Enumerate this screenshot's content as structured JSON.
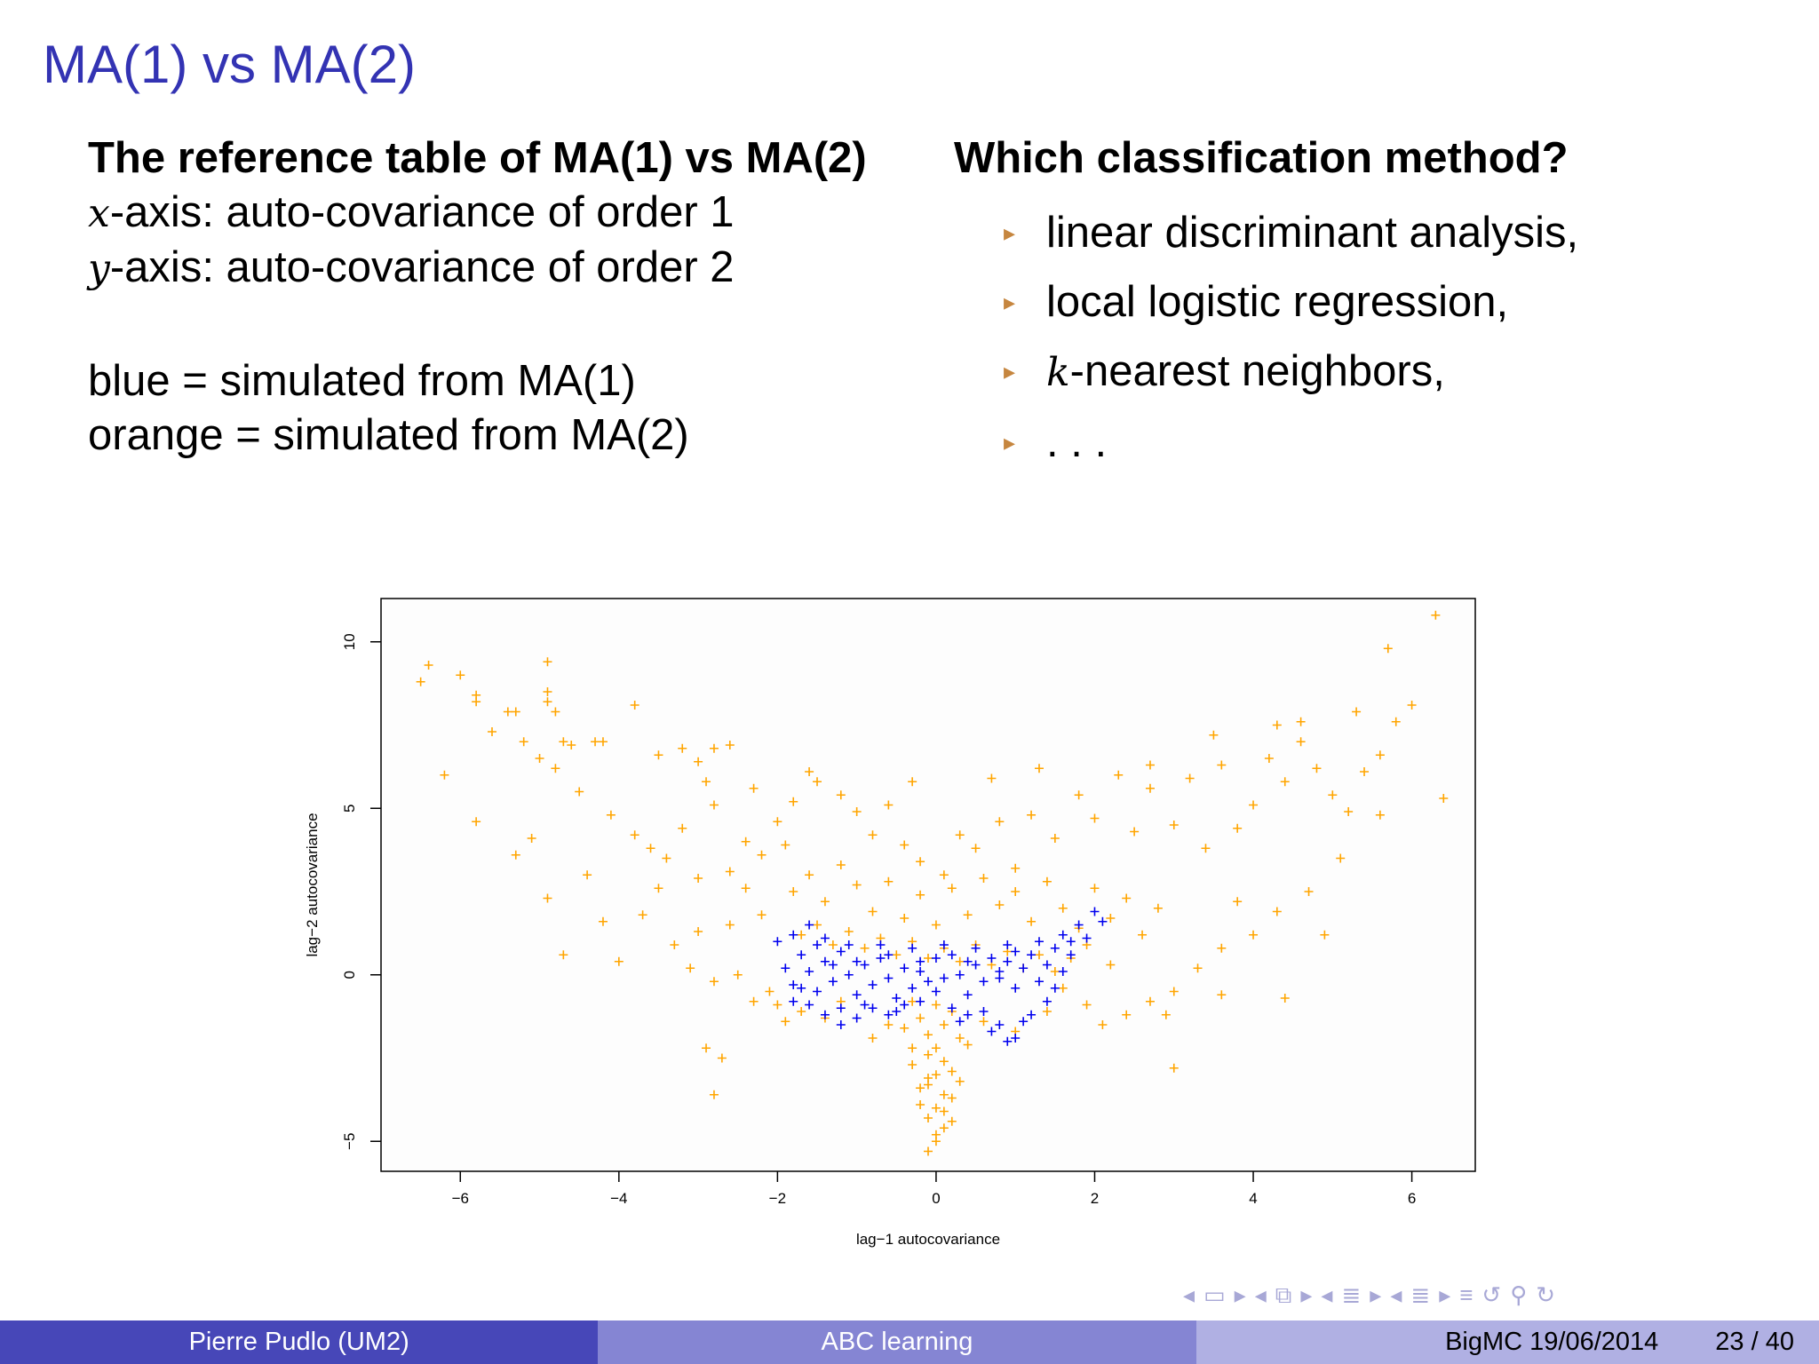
{
  "slide": {
    "title": "MA(1) vs MA(2)",
    "left": {
      "heading": "The reference table of MA(1) vs MA(2)",
      "x_var": "x",
      "x_desc": "-axis: auto-covariance of order 1",
      "y_var": "y",
      "y_desc": "-axis: auto-covariance of order 2",
      "blue_line": "blue = simulated from MA(1)",
      "orange_line": "orange = simulated from MA(2)"
    },
    "right": {
      "heading": "Which classification method?",
      "bullets": [
        "linear discriminant analysis,",
        "local logistic regression,",
        "-nearest neighbors,",
        ". . ."
      ],
      "k_var": "k",
      "bullet_glyph": "▸"
    }
  },
  "chart_data": {
    "type": "scatter",
    "xlabel": "lag−1 autocovariance",
    "ylabel": "lag−2 autocovariance",
    "xlim": [
      -7.0,
      6.8
    ],
    "ylim": [
      -5.9,
      11.3
    ],
    "xticks": [
      -6,
      -4,
      -2,
      0,
      2,
      4,
      6
    ],
    "xtick_labels": [
      "−6",
      "−4",
      "−2",
      "0",
      "2",
      "4",
      "6"
    ],
    "yticks": [
      -5,
      0,
      5,
      10
    ],
    "ytick_labels": [
      "−5",
      "0",
      "5",
      "10"
    ],
    "marker": "+",
    "grid": false,
    "series": [
      {
        "color": "#ffa500",
        "points": [
          [
            -6.5,
            8.8
          ],
          [
            -6.4,
            9.3
          ],
          [
            -6.0,
            9.0
          ],
          [
            -5.8,
            8.2
          ],
          [
            -5.8,
            8.4
          ],
          [
            -5.6,
            7.3
          ],
          [
            -5.4,
            7.9
          ],
          [
            -5.3,
            7.9
          ],
          [
            -4.9,
            9.4
          ],
          [
            -4.9,
            8.5
          ],
          [
            -4.8,
            7.9
          ],
          [
            -4.9,
            8.2
          ],
          [
            -5.2,
            7.0
          ],
          [
            -5.0,
            6.5
          ],
          [
            -4.7,
            7.0
          ],
          [
            -4.6,
            6.9
          ],
          [
            -4.3,
            7.0
          ],
          [
            -3.8,
            8.1
          ],
          [
            -3.2,
            6.8
          ],
          [
            -3.0,
            6.4
          ],
          [
            -2.8,
            6.8
          ],
          [
            -2.6,
            6.9
          ],
          [
            -6.2,
            6.0
          ],
          [
            -5.8,
            4.6
          ],
          [
            -5.3,
            3.6
          ],
          [
            -5.1,
            4.1
          ],
          [
            -4.9,
            2.3
          ],
          [
            -4.7,
            0.6
          ],
          [
            -4.4,
            3.0
          ],
          [
            -4.2,
            1.6
          ],
          [
            -4.0,
            0.4
          ],
          [
            -3.7,
            1.8
          ],
          [
            -3.5,
            2.6
          ],
          [
            -3.3,
            0.9
          ],
          [
            -3.1,
            0.2
          ],
          [
            -3.0,
            1.3
          ],
          [
            -2.8,
            -0.2
          ],
          [
            -2.6,
            1.5
          ],
          [
            -2.5,
            0.0
          ],
          [
            -2.9,
            -2.2
          ],
          [
            -2.7,
            -2.5
          ],
          [
            -2.8,
            -3.6
          ],
          [
            -2.3,
            -0.8
          ],
          [
            -2.1,
            -0.5
          ],
          [
            -1.7,
            -1.1
          ],
          [
            -1.4,
            -1.3
          ],
          [
            -2.0,
            4.6
          ],
          [
            -1.8,
            5.2
          ],
          [
            -1.5,
            5.8
          ],
          [
            -1.2,
            5.4
          ],
          [
            -1.0,
            4.9
          ],
          [
            -0.8,
            4.2
          ],
          [
            -0.6,
            5.1
          ],
          [
            -0.4,
            3.9
          ],
          [
            -0.2,
            3.4
          ],
          [
            0.1,
            3.0
          ],
          [
            0.3,
            4.2
          ],
          [
            0.5,
            3.8
          ],
          [
            0.8,
            4.6
          ],
          [
            1.0,
            3.2
          ],
          [
            1.2,
            4.8
          ],
          [
            1.5,
            4.1
          ],
          [
            1.8,
            5.4
          ],
          [
            2.0,
            4.7
          ],
          [
            2.3,
            6.0
          ],
          [
            2.5,
            4.3
          ],
          [
            2.7,
            5.6
          ],
          [
            3.0,
            4.5
          ],
          [
            3.2,
            5.9
          ],
          [
            3.4,
            3.8
          ],
          [
            3.6,
            6.3
          ],
          [
            3.8,
            4.4
          ],
          [
            4.0,
            5.1
          ],
          [
            4.2,
            6.5
          ],
          [
            4.4,
            5.8
          ],
          [
            4.6,
            7.0
          ],
          [
            4.8,
            6.2
          ],
          [
            5.0,
            5.4
          ],
          [
            5.2,
            4.9
          ],
          [
            5.4,
            6.1
          ],
          [
            5.6,
            6.6
          ],
          [
            5.8,
            7.6
          ],
          [
            6.0,
            8.1
          ],
          [
            5.7,
            9.8
          ],
          [
            6.3,
            10.8
          ],
          [
            6.4,
            5.3
          ],
          [
            5.6,
            4.8
          ],
          [
            5.1,
            3.5
          ],
          [
            4.7,
            2.5
          ],
          [
            4.3,
            1.9
          ],
          [
            4.0,
            1.2
          ],
          [
            3.6,
            0.8
          ],
          [
            3.3,
            0.2
          ],
          [
            3.0,
            -0.5
          ],
          [
            2.7,
            -0.8
          ],
          [
            2.4,
            -1.2
          ],
          [
            2.1,
            -1.5
          ],
          [
            3.0,
            -2.8
          ],
          [
            4.9,
            1.2
          ],
          [
            3.8,
            2.2
          ],
          [
            -1.8,
            2.5
          ],
          [
            -1.6,
            3.0
          ],
          [
            -1.4,
            2.2
          ],
          [
            -1.2,
            3.3
          ],
          [
            -1.0,
            2.7
          ],
          [
            -0.8,
            1.9
          ],
          [
            -0.6,
            2.8
          ],
          [
            -0.4,
            1.7
          ],
          [
            -0.2,
            2.4
          ],
          [
            0.0,
            1.5
          ],
          [
            0.2,
            2.6
          ],
          [
            0.4,
            1.8
          ],
          [
            0.6,
            2.9
          ],
          [
            0.8,
            2.1
          ],
          [
            1.0,
            2.5
          ],
          [
            1.2,
            1.6
          ],
          [
            1.4,
            2.8
          ],
          [
            1.6,
            2.0
          ],
          [
            1.8,
            1.4
          ],
          [
            2.0,
            2.6
          ],
          [
            2.2,
            1.7
          ],
          [
            2.4,
            2.3
          ],
          [
            2.6,
            1.2
          ],
          [
            2.8,
            2.0
          ],
          [
            -2.2,
            1.8
          ],
          [
            -2.4,
            2.6
          ],
          [
            -2.6,
            3.1
          ],
          [
            -3.0,
            2.9
          ],
          [
            -3.4,
            3.5
          ],
          [
            -3.8,
            4.2
          ],
          [
            -4.1,
            4.8
          ],
          [
            -4.5,
            5.5
          ],
          [
            -4.8,
            6.2
          ],
          [
            -3.6,
            3.8
          ],
          [
            -3.2,
            4.4
          ],
          [
            -2.8,
            5.1
          ],
          [
            -2.4,
            4.0
          ],
          [
            -2.2,
            3.6
          ],
          [
            -1.9,
            3.9
          ],
          [
            -1.7,
            1.2
          ],
          [
            -1.5,
            1.5
          ],
          [
            -1.3,
            0.9
          ],
          [
            -1.1,
            1.3
          ],
          [
            -0.9,
            0.8
          ],
          [
            -0.7,
            1.1
          ],
          [
            -0.5,
            0.6
          ],
          [
            -0.3,
            1.0
          ],
          [
            -0.1,
            0.5
          ],
          [
            0.1,
            0.8
          ],
          [
            0.3,
            0.4
          ],
          [
            0.5,
            0.9
          ],
          [
            0.7,
            0.3
          ],
          [
            0.9,
            0.7
          ],
          [
            1.1,
            0.2
          ],
          [
            1.3,
            0.6
          ],
          [
            1.5,
            0.1
          ],
          [
            1.7,
            0.5
          ],
          [
            1.9,
            0.9
          ],
          [
            -0.3,
            -0.8
          ],
          [
            -0.2,
            -1.3
          ],
          [
            -0.1,
            -1.8
          ],
          [
            0.0,
            -2.2
          ],
          [
            0.1,
            -2.6
          ],
          [
            0.0,
            -3.0
          ],
          [
            -0.1,
            -3.3
          ],
          [
            0.1,
            -3.6
          ],
          [
            0.0,
            -4.0
          ],
          [
            -0.1,
            -4.3
          ],
          [
            0.1,
            -4.6
          ],
          [
            0.0,
            -5.0
          ],
          [
            -0.1,
            -5.3
          ],
          [
            0.2,
            -4.4
          ],
          [
            -0.2,
            -3.9
          ],
          [
            0.3,
            -3.2
          ],
          [
            -0.3,
            -2.7
          ],
          [
            0.4,
            -2.1
          ],
          [
            -0.4,
            -1.6
          ],
          [
            0.2,
            -1.1
          ],
          [
            -0.1,
            -2.4
          ],
          [
            0.1,
            -1.5
          ],
          [
            0.0,
            -0.9
          ],
          [
            0.2,
            -2.9
          ],
          [
            -0.2,
            -3.4
          ],
          [
            0.3,
            -1.9
          ],
          [
            -0.3,
            -2.2
          ],
          [
            0.1,
            -4.1
          ],
          [
            -0.1,
            -3.1
          ],
          [
            0.0,
            -4.8
          ],
          [
            0.2,
            -3.7
          ],
          [
            -4.2,
            7.0
          ],
          [
            -3.5,
            6.6
          ],
          [
            -2.9,
            5.8
          ],
          [
            -2.3,
            5.6
          ],
          [
            -1.6,
            6.1
          ],
          [
            -0.3,
            5.8
          ],
          [
            0.7,
            5.9
          ],
          [
            1.3,
            6.2
          ],
          [
            2.7,
            6.3
          ],
          [
            3.5,
            7.2
          ],
          [
            4.3,
            7.5
          ],
          [
            4.6,
            7.6
          ],
          [
            5.3,
            7.9
          ],
          [
            1.6,
            -0.4
          ],
          [
            1.9,
            -0.9
          ],
          [
            -2.0,
            -0.9
          ],
          [
            -1.9,
            -1.4
          ],
          [
            2.2,
            0.3
          ],
          [
            2.9,
            -1.2
          ],
          [
            3.6,
            -0.6
          ],
          [
            4.4,
            -0.7
          ],
          [
            1.0,
            -1.7
          ],
          [
            -0.8,
            -1.9
          ],
          [
            0.6,
            -1.4
          ],
          [
            -0.6,
            -1.5
          ],
          [
            1.4,
            -1.1
          ],
          [
            -1.2,
            -0.8
          ]
        ]
      },
      {
        "color": "#0000ee",
        "points": [
          [
            -1.9,
            0.2
          ],
          [
            -1.8,
            -0.3
          ],
          [
            -1.7,
            0.6
          ],
          [
            -1.6,
            0.1
          ],
          [
            -1.5,
            -0.5
          ],
          [
            -1.4,
            0.4
          ],
          [
            -1.3,
            -0.2
          ],
          [
            -1.2,
            0.7
          ],
          [
            -1.1,
            0.0
          ],
          [
            -1.0,
            -0.6
          ],
          [
            -0.9,
            0.3
          ],
          [
            -0.8,
            -0.3
          ],
          [
            -0.7,
            0.5
          ],
          [
            -0.6,
            -0.1
          ],
          [
            -0.5,
            -0.7
          ],
          [
            -0.4,
            0.2
          ],
          [
            -0.3,
            -0.4
          ],
          [
            -0.2,
            0.4
          ],
          [
            -0.1,
            -0.2
          ],
          [
            0.0,
            0.5
          ],
          [
            0.1,
            -0.1
          ],
          [
            0.2,
            0.6
          ],
          [
            0.3,
            0.0
          ],
          [
            0.4,
            -0.6
          ],
          [
            0.5,
            0.3
          ],
          [
            0.6,
            -0.2
          ],
          [
            0.7,
            0.5
          ],
          [
            0.8,
            -0.1
          ],
          [
            0.9,
            0.4
          ],
          [
            1.0,
            -0.4
          ],
          [
            1.1,
            0.2
          ],
          [
            1.2,
            0.6
          ],
          [
            1.3,
            -0.2
          ],
          [
            1.4,
            0.3
          ],
          [
            1.5,
            0.8
          ],
          [
            1.6,
            0.1
          ],
          [
            1.7,
            1.0
          ],
          [
            1.8,
            1.5
          ],
          [
            1.9,
            1.1
          ],
          [
            2.0,
            1.9
          ],
          [
            2.1,
            1.6
          ],
          [
            -2.0,
            1.0
          ],
          [
            -1.8,
            1.2
          ],
          [
            -1.6,
            1.5
          ],
          [
            -1.4,
            1.1
          ],
          [
            -1.2,
            -1.0
          ],
          [
            -1.0,
            -1.3
          ],
          [
            -0.8,
            -1.0
          ],
          [
            -0.6,
            -1.2
          ],
          [
            -0.4,
            -0.9
          ],
          [
            -0.2,
            -0.8
          ],
          [
            0.2,
            -1.0
          ],
          [
            0.4,
            -1.2
          ],
          [
            0.6,
            -1.1
          ],
          [
            0.8,
            -1.5
          ],
          [
            1.0,
            -1.9
          ],
          [
            1.1,
            -1.4
          ],
          [
            0.9,
            -2.0
          ],
          [
            0.7,
            -1.7
          ],
          [
            -1.2,
            -1.5
          ],
          [
            -1.4,
            -1.2
          ],
          [
            -1.6,
            -0.9
          ],
          [
            -1.8,
            -0.8
          ],
          [
            -1.5,
            0.9
          ],
          [
            -1.1,
            0.9
          ],
          [
            -0.7,
            0.9
          ],
          [
            -0.3,
            0.8
          ],
          [
            0.1,
            0.9
          ],
          [
            0.5,
            0.8
          ],
          [
            0.9,
            0.9
          ],
          [
            1.3,
            1.0
          ],
          [
            1.6,
            1.2
          ],
          [
            -0.9,
            -0.9
          ],
          [
            -0.5,
            -1.1
          ],
          [
            0.3,
            -1.4
          ],
          [
            1.2,
            -1.2
          ],
          [
            1.4,
            -0.8
          ],
          [
            1.5,
            -0.4
          ],
          [
            -1.7,
            -0.4
          ],
          [
            -0.2,
            0.1
          ],
          [
            0.0,
            -0.5
          ],
          [
            -0.6,
            0.6
          ],
          [
            0.4,
            0.4
          ],
          [
            0.8,
            0.1
          ],
          [
            -1.0,
            0.4
          ],
          [
            1.0,
            0.7
          ],
          [
            -1.3,
            0.3
          ],
          [
            1.7,
            0.6
          ]
        ]
      }
    ]
  },
  "footer": {
    "author": "Pierre Pudlo  (UM2)",
    "talk": "ABC learning",
    "event": "BigMC 19/06/2014",
    "page": "23 / 40"
  },
  "nav_icons": [
    "nav-frame-left-icon",
    "nav-frame-icon",
    "nav-frame-right-icon",
    "nav-subsection-left-icon",
    "nav-subsection-icon",
    "nav-subsection-right-icon",
    "nav-section-left-icon",
    "nav-section-icon",
    "nav-section-right-icon",
    "nav-doc-left-icon",
    "nav-doc-icon",
    "nav-doc-right-icon",
    "nav-align-icon",
    "nav-back-icon",
    "nav-search-icon",
    "nav-forward-icon"
  ]
}
